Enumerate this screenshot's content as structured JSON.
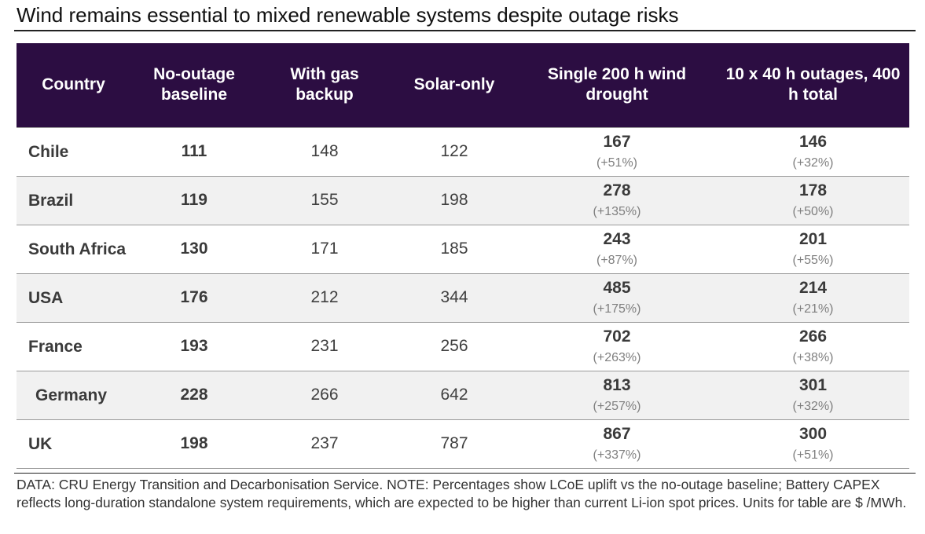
{
  "title": "Wind remains essential to mixed renewable systems despite outage risks",
  "footnote": "DATA: CRU Energy Transition and Decarbonisation Service. NOTE: Percentages show LCoE uplift vs the no-outage baseline; Battery CAPEX reflects long-duration standalone system requirements, which are expected to be higher than current Li-ion spot prices. Units for table are $ /MWh.",
  "colors": {
    "header_background": "#2c0d42",
    "header_text": "#ffffff",
    "alt_row": "#f1f1f1"
  },
  "chart_data": {
    "type": "table",
    "title": "Wind remains essential to mixed renewable systems despite outage risks",
    "columns": [
      "Country",
      "No-outage baseline",
      "With gas backup",
      "Solar-only",
      "Single 200 h wind drought",
      "10 x 40 h outages, 400 h total"
    ],
    "rows": [
      {
        "country": "Chile",
        "baseline": "111",
        "gas_backup": "148",
        "solar_only": "122",
        "wind_drought": "167",
        "wind_drought_pct": "(+51%)",
        "outages": "146",
        "outages_pct": "(+32%)"
      },
      {
        "country": "Brazil",
        "baseline": "119",
        "gas_backup": "155",
        "solar_only": "198",
        "wind_drought": "278",
        "wind_drought_pct": "(+135%)",
        "outages": "178",
        "outages_pct": "(+50%)"
      },
      {
        "country": "South Africa",
        "baseline": "130",
        "gas_backup": "171",
        "solar_only": "185",
        "wind_drought": "243",
        "wind_drought_pct": "(+87%)",
        "outages": "201",
        "outages_pct": "(+55%)"
      },
      {
        "country": "USA",
        "baseline": "176",
        "gas_backup": "212",
        "solar_only": "344",
        "wind_drought": "485",
        "wind_drought_pct": "(+175%)",
        "outages": "214",
        "outages_pct": "(+21%)"
      },
      {
        "country": "France",
        "baseline": "193",
        "gas_backup": "231",
        "solar_only": "256",
        "wind_drought": "702",
        "wind_drought_pct": "(+263%)",
        "outages": "266",
        "outages_pct": "(+38%)"
      },
      {
        "country": "Germany",
        "baseline": "228",
        "gas_backup": "266",
        "solar_only": "642",
        "wind_drought": "813",
        "wind_drought_pct": "(+257%)",
        "outages": "301",
        "outages_pct": "(+32%)"
      },
      {
        "country": "UK",
        "baseline": "198",
        "gas_backup": "237",
        "solar_only": "787",
        "wind_drought": "867",
        "wind_drought_pct": "(+337%)",
        "outages": "300",
        "outages_pct": "(+51%)"
      }
    ]
  }
}
